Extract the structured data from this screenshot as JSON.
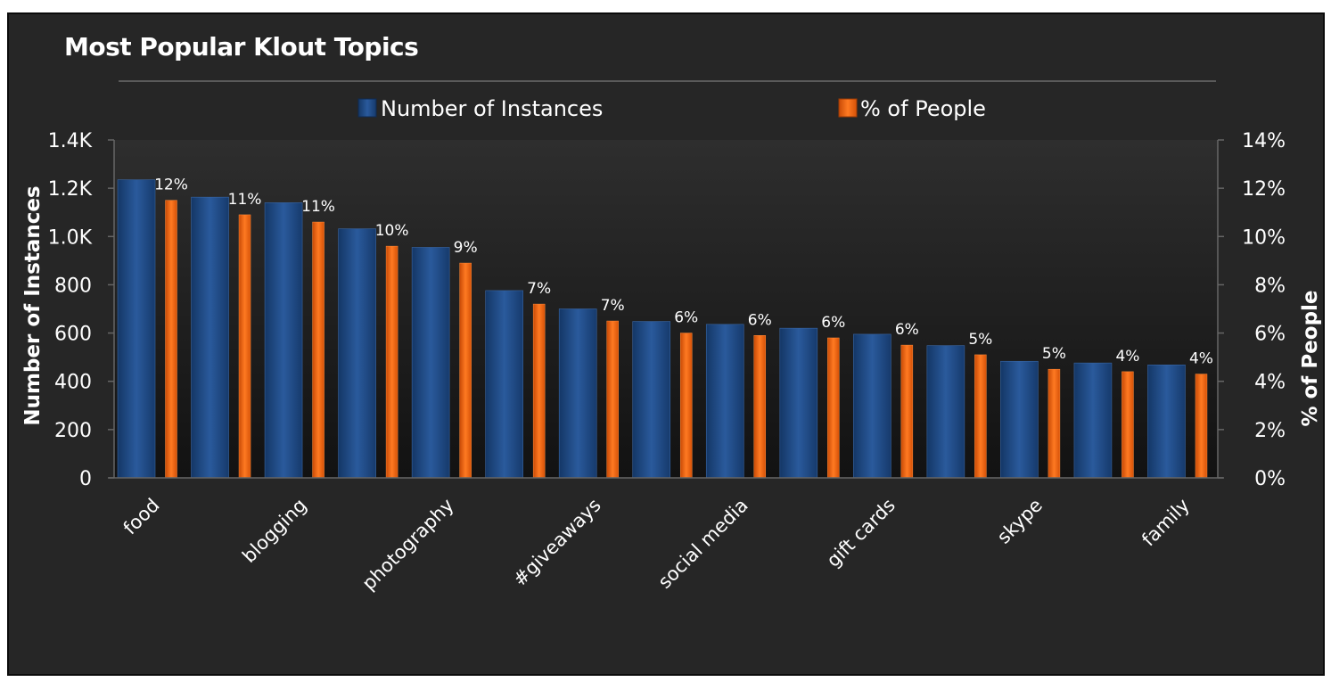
{
  "chart_data": {
    "type": "bar",
    "title": "Most Popular Klout Topics",
    "ylabel": "Number of Instances",
    "y2label": "% of People",
    "ylim": [
      0,
      1400
    ],
    "y2lim": [
      0,
      14
    ],
    "yticks": [
      "0",
      "200",
      "400",
      "600",
      "800",
      "1.0K",
      "1.2K",
      "1.4K"
    ],
    "y2ticks": [
      "0%",
      "2%",
      "4%",
      "6%",
      "8%",
      "10%",
      "12%",
      "14%"
    ],
    "categories": [
      "food",
      "",
      "blogging",
      "",
      "photography",
      "",
      "#giveaways",
      "",
      "social media",
      "",
      "gift cards",
      "",
      "skype",
      "",
      "family"
    ],
    "series": [
      {
        "name": "Number of Instances",
        "axis": "left",
        "color": "#1f4a85",
        "values": [
          1235,
          1163,
          1140,
          1032,
          955,
          776,
          700,
          648,
          636,
          620,
          595,
          548,
          483,
          476,
          468
        ]
      },
      {
        "name": "% of People",
        "axis": "right",
        "color": "#f06010",
        "values": [
          11.5,
          10.9,
          10.6,
          9.6,
          8.9,
          7.2,
          6.5,
          6.0,
          5.9,
          5.8,
          5.5,
          5.1,
          4.5,
          4.4,
          4.3
        ],
        "data_labels": [
          "12%",
          "11%",
          "11%",
          "10%",
          "9%",
          "7%",
          "7%",
          "6%",
          "6%",
          "6%",
          "6%",
          "5%",
          "5%",
          "4%",
          "4%"
        ]
      }
    ],
    "legend": "top-center",
    "grid": false,
    "background": "#262626"
  }
}
